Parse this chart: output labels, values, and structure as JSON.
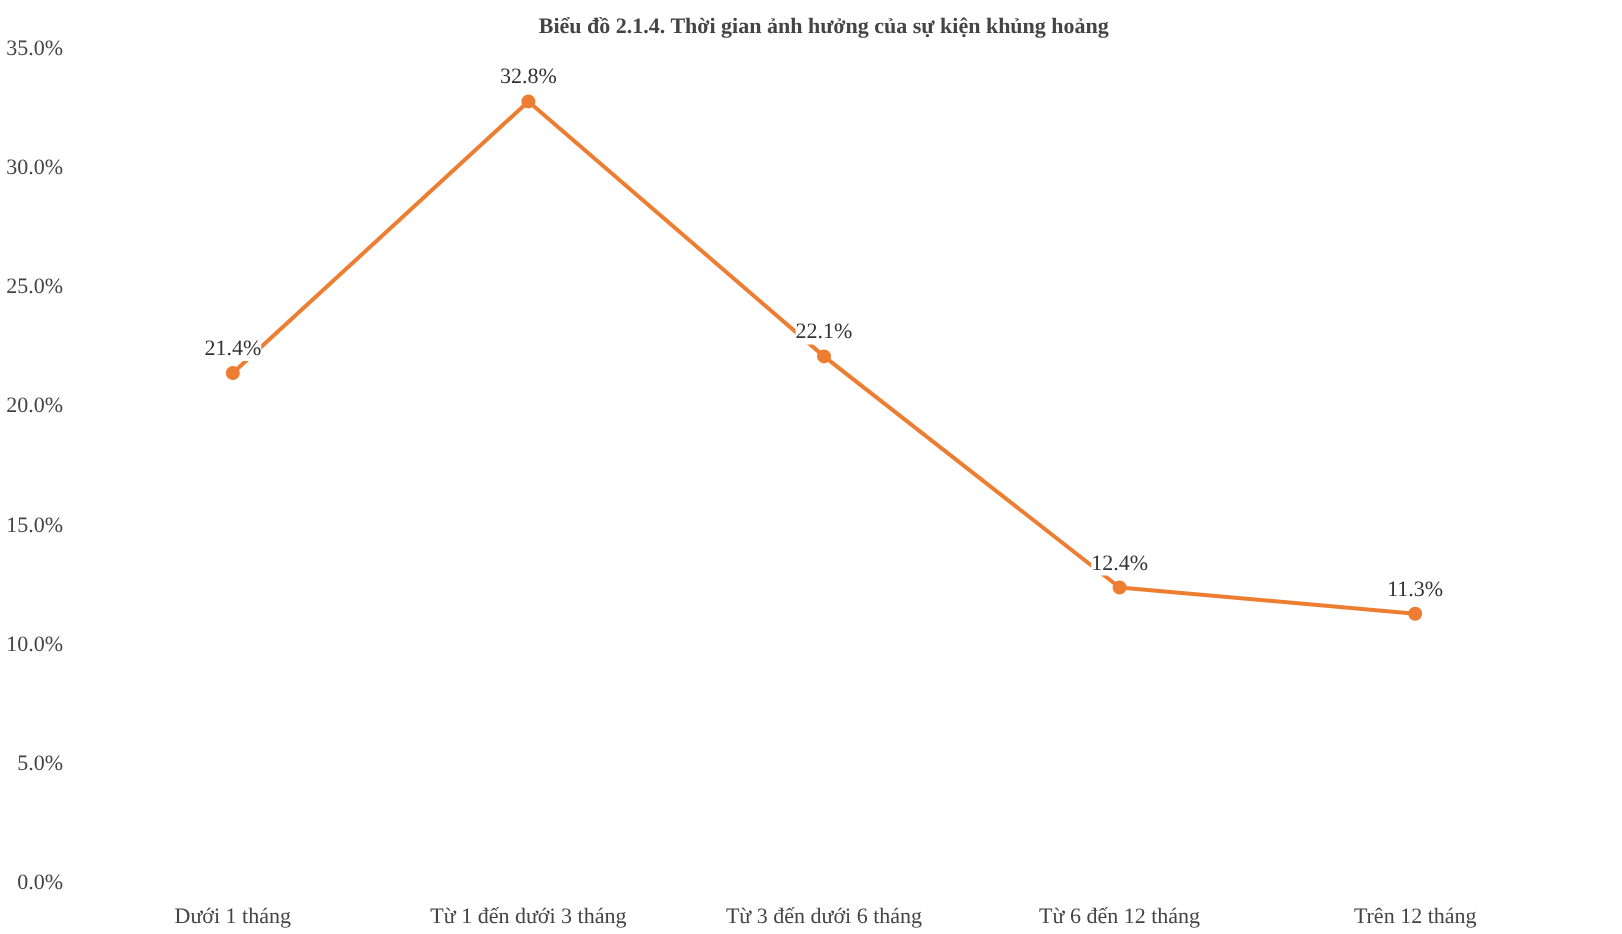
{
  "chart_data": {
    "type": "line",
    "title": "Biểu đồ 2.1.4. Thời gian ảnh hưởng của sự kiện khủng hoảng",
    "categories": [
      "Dưới 1 tháng",
      "Từ 1 đến dưới 3 tháng",
      "Từ 3 đến dưới 6 tháng",
      "Từ 6 đến 12 tháng",
      "Trên 12 tháng"
    ],
    "series": [
      {
        "color": "#ed7d31",
        "values": [
          21.4,
          32.8,
          22.1,
          12.4,
          11.3
        ]
      }
    ],
    "ylim": [
      0,
      35
    ],
    "yticks": [
      {
        "value": 0,
        "label": "0.0%"
      },
      {
        "value": 5,
        "label": "5.0%"
      },
      {
        "value": 10,
        "label": "10.0%"
      },
      {
        "value": 15,
        "label": "15.0%"
      },
      {
        "value": 20,
        "label": "20.0%"
      },
      {
        "value": 25,
        "label": "25.0%"
      },
      {
        "value": 30,
        "label": "30.0%"
      },
      {
        "value": 35,
        "label": "35.0%"
      }
    ],
    "value_labels": [
      "21.4%",
      "32.8%",
      "22.1%",
      "12.4%",
      "11.3%"
    ],
    "marker": "circle",
    "grid": false
  }
}
